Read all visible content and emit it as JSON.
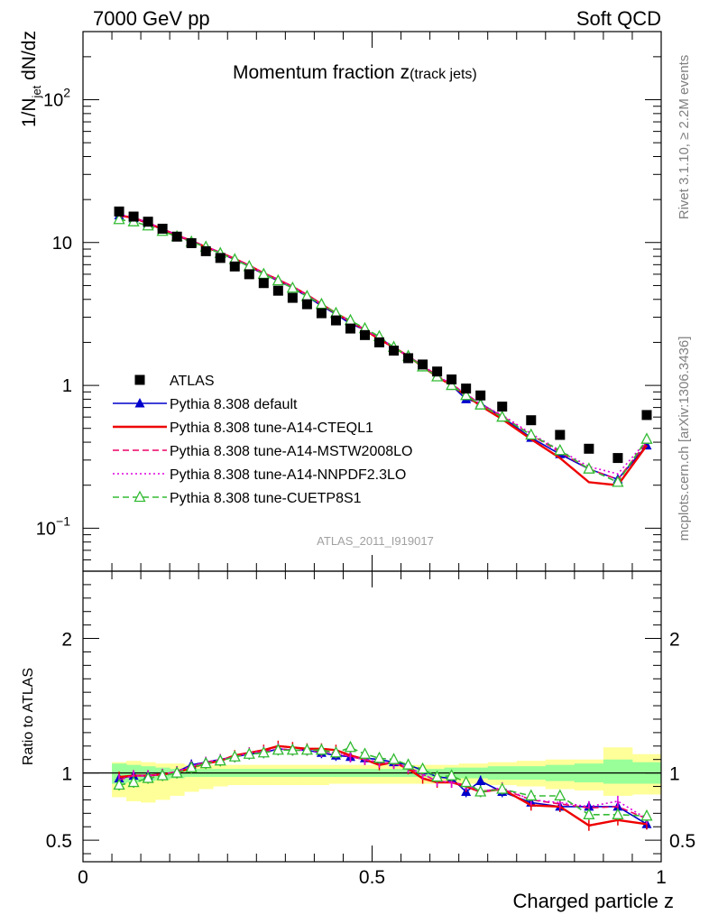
{
  "header": {
    "left": "7000 GeV pp",
    "right": "Soft QCD"
  },
  "side": {
    "rivet": "Rivet 3.1.10, ≥ 2.2M events",
    "mcplots": "mcplots.cern.ch [arXiv:1306.3436]"
  },
  "chart_data": [
    {
      "type": "line",
      "panel": "main",
      "title_main": "Momentum fraction z",
      "title_sub": "(track jets)",
      "ylabel": "1/N",
      "ylabel_sub": "jet",
      "ylabel_rest": " dN/dz",
      "yscale": "log",
      "ylim": [
        0.05,
        300
      ],
      "xlim": [
        0,
        1
      ],
      "yticks": [
        {
          "value": 0.1,
          "base": "10",
          "exp": "−1"
        },
        {
          "value": 1,
          "base": "1",
          "exp": ""
        },
        {
          "value": 10,
          "base": "10",
          "exp": ""
        },
        {
          "value": 100,
          "base": "10",
          "exp": "2"
        }
      ],
      "watermark": "ATLAS_2011_I919017",
      "legend_position": "lower-left",
      "x": [
        0.0625,
        0.0875,
        0.1125,
        0.1375,
        0.1625,
        0.1875,
        0.2125,
        0.2375,
        0.2625,
        0.2875,
        0.3125,
        0.3375,
        0.3625,
        0.3875,
        0.4125,
        0.4375,
        0.4625,
        0.4875,
        0.5125,
        0.5375,
        0.5625,
        0.5875,
        0.6125,
        0.6375,
        0.6625,
        0.6875,
        0.725,
        0.775,
        0.825,
        0.875,
        0.925,
        0.975
      ],
      "series": [
        {
          "name": "ATLAS",
          "color": "#000000",
          "marker": "square",
          "line": "none",
          "values": [
            16.5,
            15.2,
            14.0,
            12.5,
            11.0,
            9.9,
            8.7,
            7.8,
            6.8,
            6.0,
            5.2,
            4.6,
            4.1,
            3.7,
            3.2,
            2.85,
            2.5,
            2.25,
            2.0,
            1.75,
            1.55,
            1.4,
            1.25,
            1.1,
            0.95,
            0.85,
            0.71,
            0.57,
            0.45,
            0.36,
            0.31,
            0.62
          ]
        },
        {
          "name": "Pythia 8.308 default",
          "color": "#0000cc",
          "marker": "triangle",
          "line": "solid",
          "values": [
            15.5,
            14.8,
            13.6,
            12.3,
            11.1,
            10.2,
            9.3,
            8.4,
            7.6,
            6.8,
            6.0,
            5.4,
            4.8,
            4.2,
            3.6,
            3.15,
            2.7,
            2.45,
            2.15,
            1.85,
            1.6,
            1.35,
            1.15,
            1.0,
            0.8,
            0.75,
            0.6,
            0.43,
            0.33,
            0.26,
            0.22,
            0.38
          ]
        },
        {
          "name": "Pythia 8.308 tune-A14-CTEQL1",
          "color": "#ee0000",
          "marker": "none",
          "line": "solid",
          "values": [
            15.5,
            14.9,
            13.7,
            12.4,
            11.2,
            10.3,
            9.3,
            8.5,
            7.7,
            6.9,
            6.1,
            5.5,
            4.9,
            4.3,
            3.7,
            3.2,
            2.8,
            2.45,
            2.1,
            1.85,
            1.6,
            1.35,
            1.15,
            1.0,
            0.85,
            0.72,
            0.58,
            0.42,
            0.31,
            0.21,
            0.2,
            0.38
          ]
        },
        {
          "name": "Pythia 8.308 tune-A14-MSTW2008LO",
          "color": "#ee0066",
          "marker": "none",
          "line": "dashed",
          "values": [
            15.6,
            14.9,
            13.8,
            12.5,
            11.3,
            10.3,
            9.4,
            8.5,
            7.7,
            6.9,
            6.1,
            5.5,
            4.9,
            4.3,
            3.7,
            3.2,
            2.8,
            2.45,
            2.15,
            1.85,
            1.6,
            1.38,
            1.17,
            1.02,
            0.87,
            0.74,
            0.61,
            0.45,
            0.34,
            0.26,
            0.22,
            0.4
          ]
        },
        {
          "name": "Pythia 8.308 tune-A14-NNPDF2.3LO",
          "color": "#dd00dd",
          "marker": "none",
          "line": "dotted",
          "values": [
            15.7,
            15.0,
            13.8,
            12.5,
            11.3,
            10.3,
            9.4,
            8.5,
            7.7,
            6.9,
            6.1,
            5.5,
            4.9,
            4.3,
            3.7,
            3.2,
            2.8,
            2.45,
            2.15,
            1.85,
            1.6,
            1.38,
            1.17,
            1.02,
            0.87,
            0.74,
            0.62,
            0.46,
            0.35,
            0.27,
            0.24,
            0.41
          ]
        },
        {
          "name": "Pythia 8.308 tune-CUETP8S1",
          "color": "#33bb33",
          "marker": "open-triangle",
          "line": "dashed",
          "values": [
            14.5,
            14.0,
            13.1,
            12.0,
            11.0,
            10.1,
            9.3,
            8.4,
            7.6,
            6.8,
            6.0,
            5.4,
            4.8,
            4.2,
            3.7,
            3.2,
            2.85,
            2.5,
            2.2,
            1.85,
            1.6,
            1.35,
            1.15,
            1.0,
            0.85,
            0.73,
            0.6,
            0.45,
            0.35,
            0.26,
            0.21,
            0.42
          ]
        }
      ]
    },
    {
      "type": "line",
      "panel": "ratio",
      "ylabel": "Ratio to ATLAS",
      "xlabel": "Charged particle z",
      "ylim": [
        0.34,
        2.5
      ],
      "xlim": [
        0,
        1
      ],
      "yticks": [
        0.5,
        1,
        2
      ],
      "xticks": [
        {
          "value": 0,
          "label": "0"
        },
        {
          "value": 0.5,
          "label": "0.5"
        },
        {
          "value": 1,
          "label": "1"
        }
      ],
      "reference_line": 1,
      "x": [
        0.0625,
        0.0875,
        0.1125,
        0.1375,
        0.1625,
        0.1875,
        0.2125,
        0.2375,
        0.2625,
        0.2875,
        0.3125,
        0.3375,
        0.3625,
        0.3875,
        0.4125,
        0.4375,
        0.4625,
        0.4875,
        0.5125,
        0.5375,
        0.5625,
        0.5875,
        0.6125,
        0.6375,
        0.6625,
        0.6875,
        0.725,
        0.775,
        0.825,
        0.875,
        0.925,
        0.975
      ],
      "bin_edges": [
        0.05,
        0.075,
        0.1,
        0.125,
        0.15,
        0.175,
        0.2,
        0.225,
        0.25,
        0.275,
        0.3,
        0.325,
        0.35,
        0.375,
        0.4,
        0.425,
        0.45,
        0.475,
        0.5,
        0.525,
        0.55,
        0.575,
        0.6,
        0.625,
        0.65,
        0.675,
        0.7,
        0.75,
        0.8,
        0.85,
        0.9,
        0.95,
        1.0
      ],
      "bands": {
        "stat_color": "#99ff99",
        "total_color": "#ffff99",
        "stat_low": [
          0.92,
          0.93,
          0.94,
          0.95,
          0.96,
          0.97,
          0.97,
          0.97,
          0.97,
          0.97,
          0.97,
          0.97,
          0.97,
          0.97,
          0.97,
          0.97,
          0.97,
          0.97,
          0.97,
          0.97,
          0.97,
          0.97,
          0.97,
          0.96,
          0.96,
          0.96,
          0.95,
          0.95,
          0.94,
          0.93,
          0.92,
          0.92
        ],
        "stat_high": [
          1.07,
          1.06,
          1.05,
          1.04,
          1.03,
          1.03,
          1.03,
          1.03,
          1.03,
          1.03,
          1.03,
          1.03,
          1.03,
          1.03,
          1.03,
          1.03,
          1.03,
          1.03,
          1.03,
          1.03,
          1.03,
          1.03,
          1.03,
          1.04,
          1.04,
          1.04,
          1.05,
          1.05,
          1.06,
          1.07,
          1.1,
          1.08
        ],
        "total_low": [
          0.82,
          0.79,
          0.78,
          0.8,
          0.83,
          0.86,
          0.88,
          0.9,
          0.91,
          0.91,
          0.91,
          0.91,
          0.91,
          0.91,
          0.91,
          0.92,
          0.92,
          0.92,
          0.92,
          0.92,
          0.92,
          0.92,
          0.92,
          0.92,
          0.92,
          0.92,
          0.91,
          0.9,
          0.88,
          0.87,
          0.83,
          0.84
        ],
        "total_high": [
          1.08,
          1.09,
          1.08,
          1.07,
          1.07,
          1.06,
          1.06,
          1.06,
          1.06,
          1.06,
          1.06,
          1.06,
          1.06,
          1.06,
          1.06,
          1.06,
          1.06,
          1.06,
          1.06,
          1.06,
          1.06,
          1.06,
          1.06,
          1.06,
          1.07,
          1.07,
          1.08,
          1.09,
          1.1,
          1.1,
          1.19,
          1.14
        ]
      },
      "series": [
        {
          "name": "Pythia 8.308 default",
          "color": "#0000cc",
          "marker": "triangle",
          "line": "solid",
          "values": [
            0.96,
            0.98,
            0.98,
            0.99,
            1.01,
            1.06,
            1.08,
            1.1,
            1.12,
            1.14,
            1.15,
            1.18,
            1.17,
            1.17,
            1.15,
            1.13,
            1.12,
            1.11,
            1.1,
            1.08,
            1.06,
            1.02,
            0.97,
            0.96,
            0.86,
            0.94,
            0.86,
            0.78,
            0.75,
            0.75,
            0.75,
            0.62
          ]
        },
        {
          "name": "Pythia 8.308 tune-A14-CTEQL1",
          "color": "#ee0000",
          "marker": "none",
          "line": "solid",
          "values": [
            0.97,
            0.98,
            0.98,
            0.99,
            1.0,
            1.04,
            1.07,
            1.09,
            1.13,
            1.15,
            1.17,
            1.2,
            1.19,
            1.18,
            1.18,
            1.17,
            1.13,
            1.1,
            1.06,
            1.08,
            1.03,
            0.96,
            0.93,
            0.93,
            0.9,
            0.86,
            0.88,
            0.76,
            0.75,
            0.61,
            0.65,
            0.62
          ]
        },
        {
          "name": "Pythia 8.308 tune-A14-MSTW2008LO",
          "color": "#ee0066",
          "marker": "none",
          "line": "dashed",
          "values": [
            0.95,
            0.98,
            0.98,
            0.99,
            1.01,
            1.05,
            1.08,
            1.1,
            1.12,
            1.15,
            1.16,
            1.18,
            1.17,
            1.17,
            1.16,
            1.15,
            1.12,
            1.1,
            1.08,
            1.07,
            1.04,
            0.99,
            0.94,
            0.93,
            0.91,
            0.86,
            0.88,
            0.8,
            0.77,
            0.74,
            0.75,
            0.66
          ]
        },
        {
          "name": "Pythia 8.308 tune-A14-NNPDF2.3LO",
          "color": "#dd00dd",
          "marker": "none",
          "line": "dotted",
          "values": [
            0.95,
            0.98,
            0.98,
            0.99,
            1.01,
            1.05,
            1.08,
            1.1,
            1.12,
            1.15,
            1.16,
            1.18,
            1.17,
            1.17,
            1.16,
            1.15,
            1.12,
            1.1,
            1.08,
            1.07,
            1.04,
            0.99,
            0.94,
            0.93,
            0.91,
            0.86,
            0.89,
            0.8,
            0.78,
            0.75,
            0.79,
            0.66
          ]
        },
        {
          "name": "Pythia 8.308 tune-CUETP8S1",
          "color": "#33bb33",
          "marker": "open-triangle",
          "line": "dashed",
          "values": [
            0.91,
            0.93,
            0.96,
            0.98,
            1.0,
            1.04,
            1.07,
            1.09,
            1.12,
            1.14,
            1.15,
            1.17,
            1.17,
            1.17,
            1.17,
            1.15,
            1.19,
            1.14,
            1.11,
            1.1,
            1.06,
            1.03,
            0.97,
            0.98,
            0.93,
            0.86,
            0.88,
            0.83,
            0.83,
            0.69,
            0.69,
            0.68
          ]
        }
      ]
    }
  ]
}
